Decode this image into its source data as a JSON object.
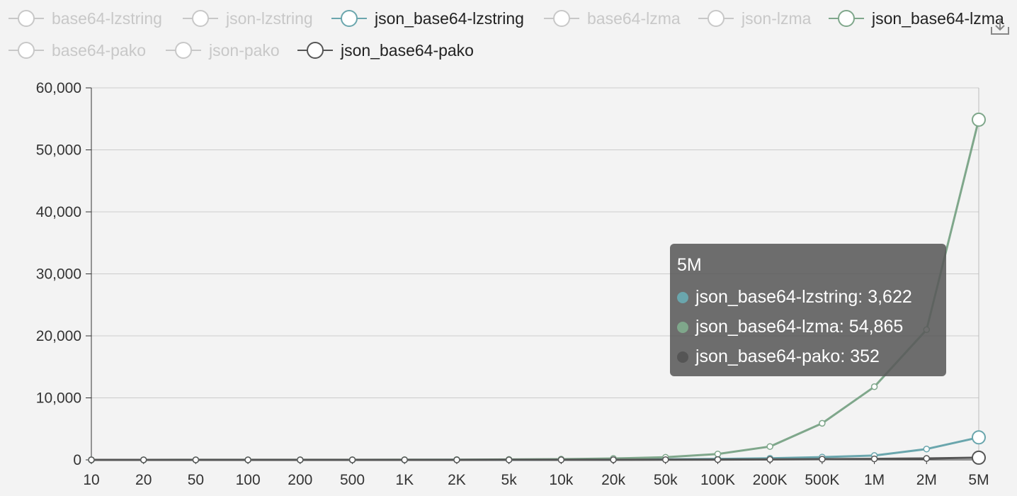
{
  "legend": [
    {
      "name": "base64-lzstring",
      "active": false
    },
    {
      "name": "json-lzstring",
      "active": false
    },
    {
      "name": "json_base64-lzstring",
      "active": true,
      "color": "#6aa6ad"
    },
    {
      "name": "base64-lzma",
      "active": false
    },
    {
      "name": "json-lzma",
      "active": false
    },
    {
      "name": "json_base64-lzma",
      "active": true,
      "color": "#7fa78b"
    },
    {
      "name": "base64-pako",
      "active": false
    },
    {
      "name": "json-pako",
      "active": false
    },
    {
      "name": "json_base64-pako",
      "active": true,
      "color": "#555555"
    }
  ],
  "toolbox": {
    "icon": "download-icon"
  },
  "colors": {
    "background": "#f3f3f3",
    "inactive_legend": "#c8c8c8",
    "grid": "#cccccc",
    "axis": "#333333"
  },
  "chart_data": {
    "type": "line",
    "categories": [
      "10",
      "20",
      "50",
      "100",
      "200",
      "500",
      "1K",
      "2K",
      "5k",
      "10k",
      "20k",
      "50k",
      "100K",
      "200K",
      "500K",
      "1M",
      "2M",
      "5M"
    ],
    "ylim": [
      0,
      60000
    ],
    "yticks": [
      0,
      10000,
      20000,
      30000,
      40000,
      50000,
      60000
    ],
    "ytick_labels": [
      "0",
      "10,000",
      "20,000",
      "30,000",
      "40,000",
      "50,000",
      "60,000"
    ],
    "grid": true,
    "legend_position": "top",
    "series": [
      {
        "name": "json_base64-lzstring",
        "color": "#6aa6ad",
        "values": [
          1,
          1,
          1,
          1,
          2,
          3,
          5,
          8,
          15,
          25,
          45,
          90,
          160,
          260,
          450,
          700,
          1750,
          3622
        ]
      },
      {
        "name": "json_base64-lzma",
        "color": "#7fa78b",
        "values": [
          5,
          5,
          6,
          7,
          9,
          14,
          22,
          38,
          70,
          120,
          230,
          420,
          950,
          2150,
          5900,
          11800,
          21000,
          54865
        ]
      },
      {
        "name": "json_base64-pako",
        "color": "#555555",
        "values": [
          1,
          1,
          1,
          1,
          1,
          2,
          3,
          4,
          6,
          9,
          14,
          25,
          45,
          70,
          110,
          160,
          230,
          352
        ]
      }
    ]
  },
  "tooltip": {
    "title": "5M",
    "rows": [
      {
        "text": "json_base64-lzstring: 3,622",
        "color": "#6aa6ad"
      },
      {
        "text": "json_base64-lzma: 54,865",
        "color": "#7fa78b"
      },
      {
        "text": "json_base64-pako: 352",
        "color": "#555555"
      }
    ]
  }
}
